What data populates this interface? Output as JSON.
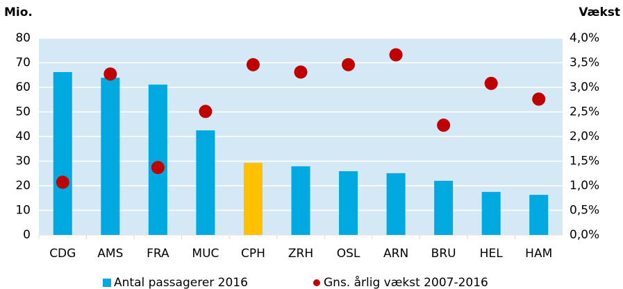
{
  "chart_data": {
    "type": "bar",
    "y_label": "Mio.",
    "y2_label": "Vækst",
    "categories": [
      "CDG",
      "AMS",
      "FRA",
      "MUC",
      "CPH",
      "ZRH",
      "OSL",
      "ARN",
      "BRU",
      "HEL",
      "HAM"
    ],
    "series": [
      {
        "name": "Antal passagerer 2016",
        "type": "bar",
        "color": "#00a9e0",
        "colors": [
          "#00a9e0",
          "#00a9e0",
          "#00a9e0",
          "#00a9e0",
          "#ffc000",
          "#00a9e0",
          "#00a9e0",
          "#00a9e0",
          "#00a9e0",
          "#00a9e0",
          "#00a9e0"
        ],
        "values": [
          66.2,
          63.9,
          61.1,
          42.5,
          29.3,
          27.9,
          25.9,
          25.1,
          22.0,
          17.5,
          16.3
        ]
      },
      {
        "name": "Gns. årlig vækst 2007-2016",
        "type": "scatter",
        "axis": "y2",
        "color": "#c00000",
        "values": [
          1.07,
          3.27,
          1.37,
          2.51,
          3.46,
          3.31,
          3.46,
          3.66,
          2.23,
          3.08,
          2.76
        ]
      }
    ],
    "ylim": [
      0,
      80
    ],
    "yticks": [
      0,
      10,
      20,
      30,
      40,
      50,
      60,
      70,
      80
    ],
    "y2lim": [
      0,
      4
    ],
    "y2ticks": [
      {
        "value": 0,
        "label": "0,0%"
      },
      {
        "value": 0.5,
        "label": "0,5%"
      },
      {
        "value": 1,
        "label": "1,0%"
      },
      {
        "value": 1.5,
        "label": "1,5%"
      },
      {
        "value": 2,
        "label": "2,0%"
      },
      {
        "value": 2.5,
        "label": "2,5%"
      },
      {
        "value": 3,
        "label": "3,0%"
      },
      {
        "value": 3.5,
        "label": "3,5%"
      },
      {
        "value": 4,
        "label": "4,0%"
      }
    ],
    "grid": true,
    "legend": "bottom",
    "plot_background": "#d5e8f5"
  }
}
